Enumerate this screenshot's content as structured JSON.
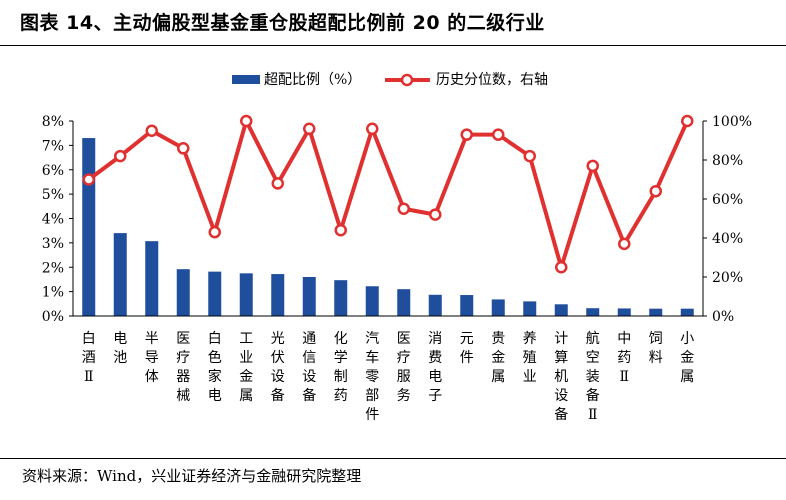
{
  "title": "图表 14、主动偏股型基金重仓股超配比例前 20 的二级行业",
  "source": "资料来源：Wind，兴业证券经济与金融研究院整理",
  "chart_data": {
    "type": "bar",
    "series": [
      {
        "name": "超配比例（%）",
        "kind": "bar",
        "axis": "left",
        "color": "#1f4e9c",
        "values": [
          7.3,
          3.4,
          3.07,
          1.92,
          1.82,
          1.75,
          1.72,
          1.6,
          1.47,
          1.22,
          1.1,
          0.87,
          0.86,
          0.68,
          0.6,
          0.48,
          0.32,
          0.31,
          0.3,
          0.3
        ]
      },
      {
        "name": "历史分位数，右轴",
        "kind": "line",
        "axis": "right",
        "color": "#e03030",
        "values": [
          70,
          82,
          95,
          86,
          43,
          100,
          68,
          96,
          44,
          96,
          55,
          52,
          93,
          93,
          82,
          25,
          77,
          37,
          64,
          100
        ]
      }
    ],
    "categories": [
      "白酒Ⅱ",
      "电池",
      "半导体",
      "医疗器械",
      "白色家电",
      "工业金属",
      "光伏设备",
      "通信设备",
      "化学制药",
      "汽车零部件",
      "医疗服务",
      "消费电子",
      "元件",
      "贵金属",
      "养殖业",
      "计算机设备",
      "航空装备Ⅱ",
      "中药Ⅱ",
      "饲料",
      "小金属"
    ],
    "left_axis": {
      "ticks": [
        "0%",
        "1%",
        "2%",
        "3%",
        "4%",
        "5%",
        "6%",
        "7%",
        "8%"
      ],
      "ylim": [
        0,
        8
      ]
    },
    "right_axis": {
      "ticks": [
        "0%",
        "20%",
        "40%",
        "60%",
        "80%",
        "100%"
      ],
      "ylim": [
        0,
        100
      ]
    }
  }
}
